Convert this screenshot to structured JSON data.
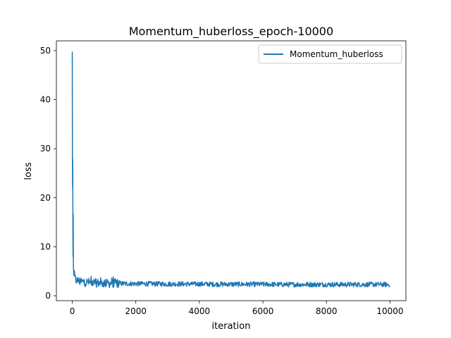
{
  "chart_data": {
    "type": "line",
    "title": "Momentum_huberloss_epoch-10000",
    "xlabel": "iteration",
    "ylabel": "loss",
    "xlim": [
      -500,
      10500
    ],
    "ylim": [
      -1,
      52
    ],
    "x_ticks": [
      0,
      2000,
      4000,
      6000,
      8000,
      10000
    ],
    "y_ticks": [
      0,
      10,
      20,
      30,
      40,
      50
    ],
    "grid": false,
    "legend_position": "top-right",
    "series": [
      {
        "name": "Momentum_huberloss",
        "color": "#1f77b4",
        "x": [
          0,
          5,
          10,
          15,
          20,
          25,
          30,
          35,
          40,
          45,
          50,
          60,
          70,
          80,
          100,
          120,
          150,
          200,
          250,
          300,
          400,
          500,
          600,
          700,
          800,
          1000,
          1200,
          1300,
          1500,
          2000,
          2500,
          3000,
          3500,
          4000,
          4500,
          5000,
          5500,
          6000,
          6500,
          7000,
          7500,
          8000,
          8500,
          9000,
          9500,
          10000
        ],
        "y": [
          49.8,
          30.0,
          22.0,
          27.8,
          12.5,
          8.0,
          16.6,
          6.5,
          5.5,
          4.8,
          4.2,
          3.9,
          3.8,
          3.6,
          3.4,
          3.2,
          3.1,
          3.0,
          2.9,
          2.85,
          2.8,
          2.75,
          2.7,
          2.65,
          2.6,
          2.55,
          2.55,
          2.6,
          2.5,
          2.45,
          2.45,
          2.4,
          2.4,
          2.4,
          2.35,
          2.35,
          2.35,
          2.35,
          2.3,
          2.3,
          2.3,
          2.3,
          2.3,
          2.3,
          2.3,
          2.3
        ]
      }
    ]
  }
}
